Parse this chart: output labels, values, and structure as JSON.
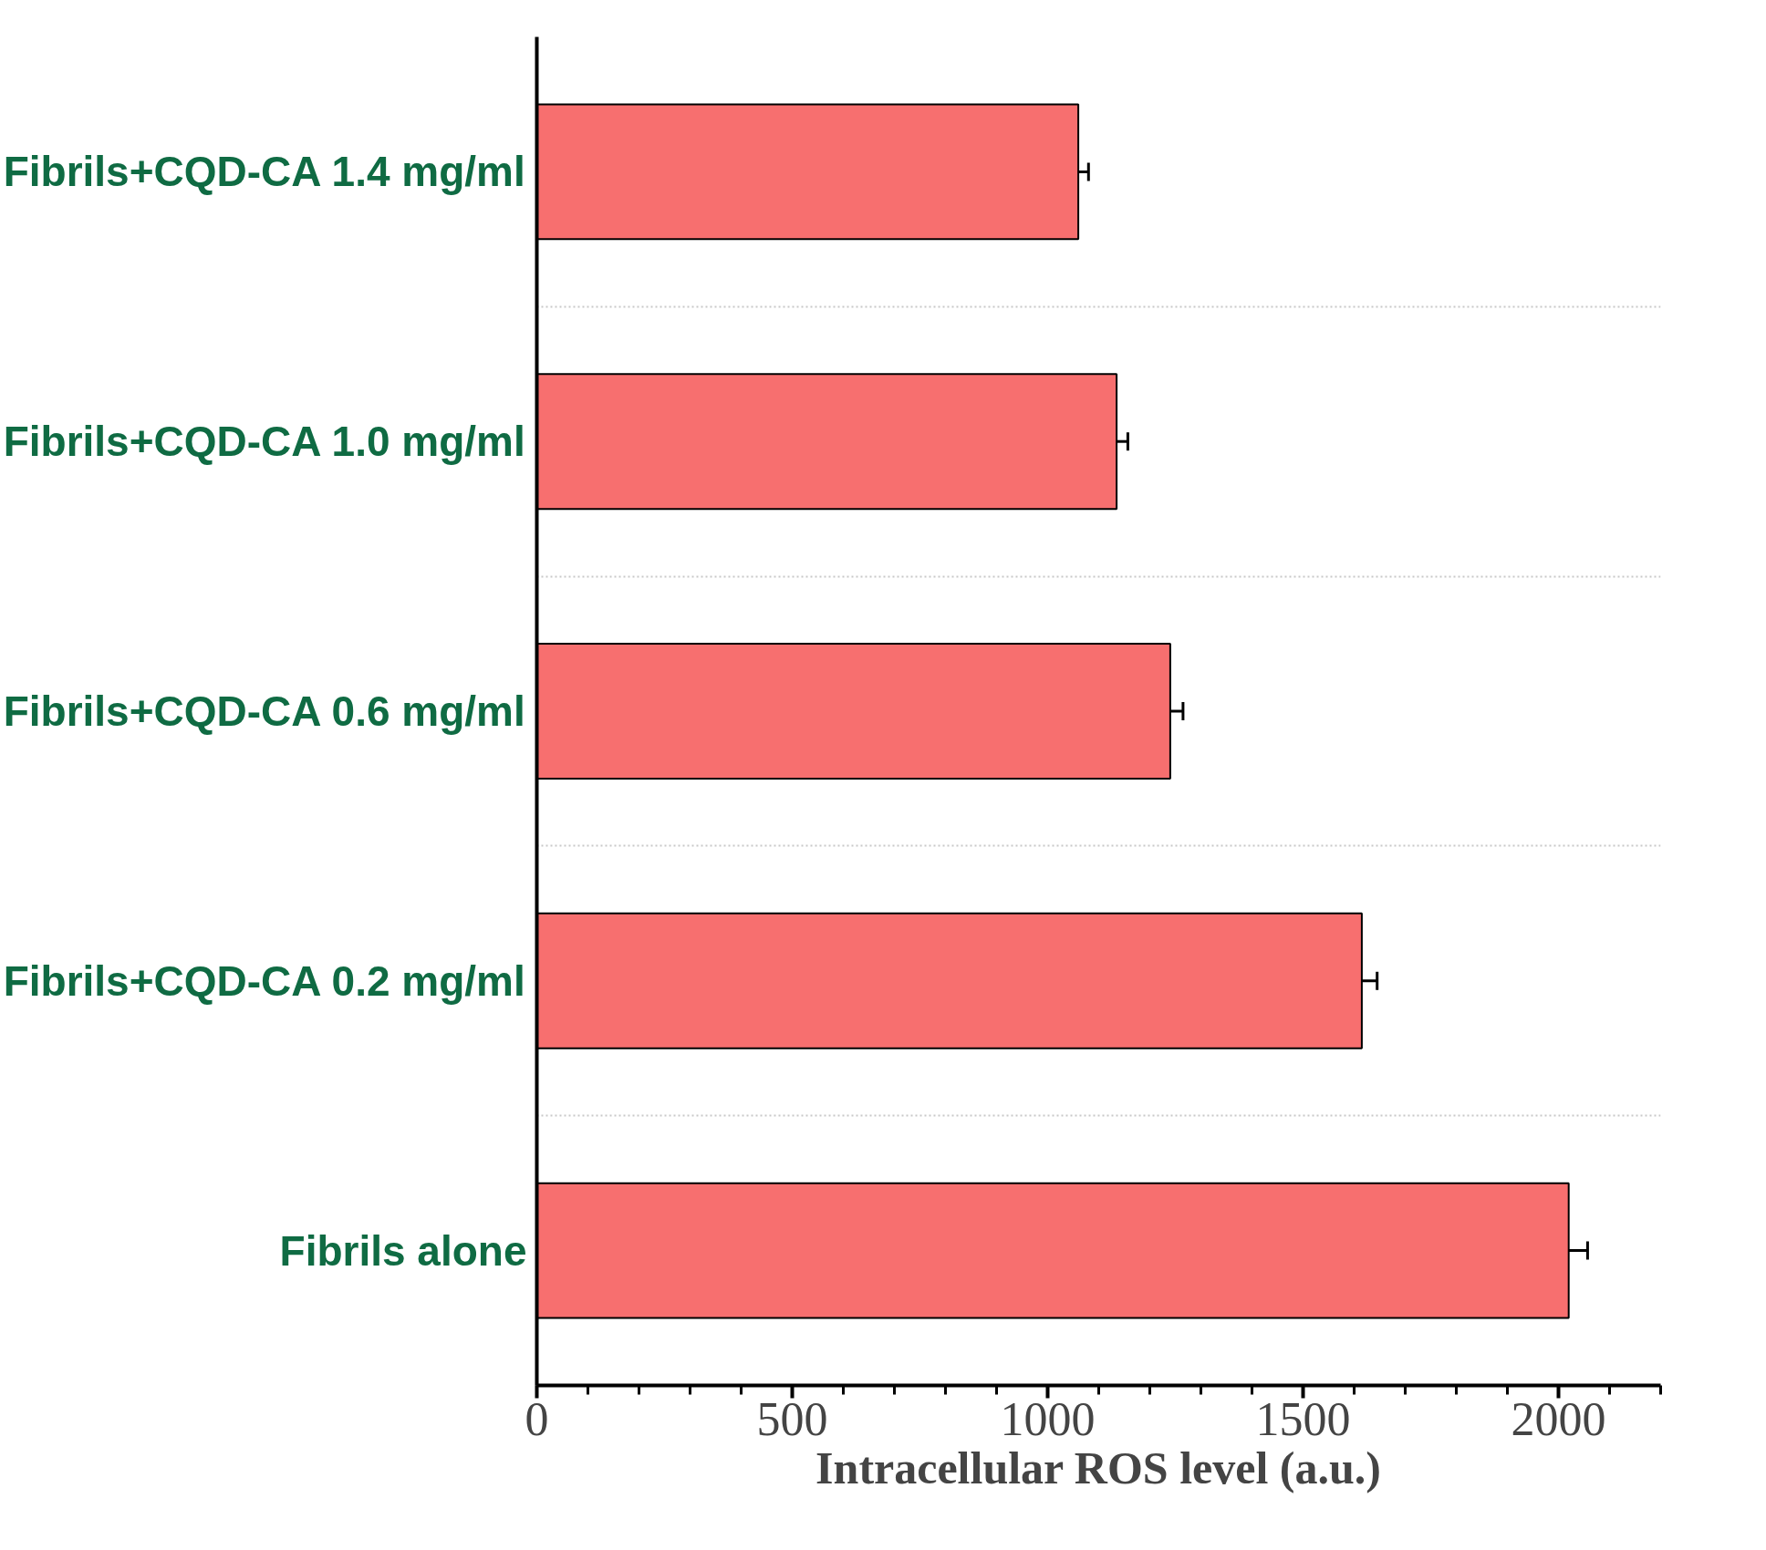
{
  "chart_data": {
    "type": "bar",
    "orientation": "horizontal",
    "xlabel": "Intracellular ROS level (a.u.)",
    "categories": [
      "Fibrils+CQD-CA 1.4 mg/ml",
      "Fibrils+CQD-CA 1.0 mg/ml",
      "Fibrils+CQD-CA 0.6 mg/ml",
      "Fibrils+CQD-CA 0.2 mg/ml",
      "Fibrils alone"
    ],
    "values": [
      1060,
      1135,
      1240,
      1615,
      2020
    ],
    "errors": [
      20,
      22,
      25,
      30,
      37
    ],
    "color": "#f76f6f",
    "xlim": [
      0,
      2200
    ],
    "xticks": [
      0,
      500,
      1000,
      1500,
      2000
    ],
    "grid": "y"
  }
}
